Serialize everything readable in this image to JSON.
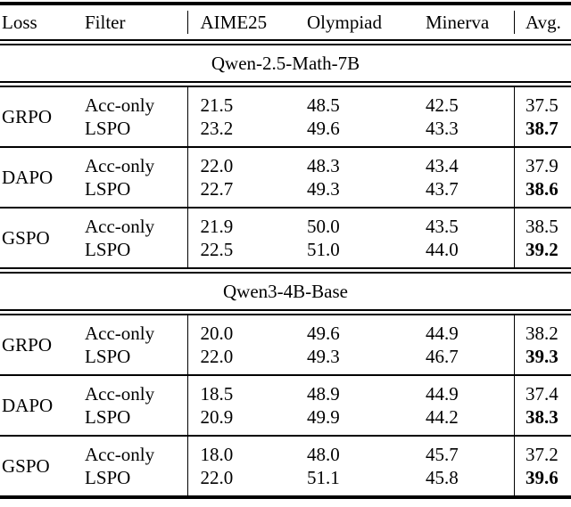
{
  "colors": {
    "background": "#ffffff",
    "text": "#000000",
    "rule": "#000000"
  },
  "table": {
    "header": {
      "loss": "Loss",
      "filter": "Filter",
      "aime25": "AIME25",
      "olympiad": "Olympiad",
      "minerva": "Minerva",
      "avg": "Avg."
    },
    "sections": [
      {
        "title": "Qwen-2.5-Math-7B",
        "blocks": [
          {
            "loss": "GRPO",
            "rows": [
              {
                "filter": "Acc-only",
                "aime25": "21.5",
                "olympiad": "48.5",
                "minerva": "42.5",
                "avg": "37.5",
                "avg_bold": false
              },
              {
                "filter": "LSPO",
                "aime25": "23.2",
                "olympiad": "49.6",
                "minerva": "43.3",
                "avg": "38.7",
                "avg_bold": true
              }
            ]
          },
          {
            "loss": "DAPO",
            "rows": [
              {
                "filter": "Acc-only",
                "aime25": "22.0",
                "olympiad": "48.3",
                "minerva": "43.4",
                "avg": "37.9",
                "avg_bold": false
              },
              {
                "filter": "LSPO",
                "aime25": "22.7",
                "olympiad": "49.3",
                "minerva": "43.7",
                "avg": "38.6",
                "avg_bold": true
              }
            ]
          },
          {
            "loss": "GSPO",
            "rows": [
              {
                "filter": "Acc-only",
                "aime25": "21.9",
                "olympiad": "50.0",
                "minerva": "43.5",
                "avg": "38.5",
                "avg_bold": false
              },
              {
                "filter": "LSPO",
                "aime25": "22.5",
                "olympiad": "51.0",
                "minerva": "44.0",
                "avg": "39.2",
                "avg_bold": true
              }
            ]
          }
        ]
      },
      {
        "title": "Qwen3-4B-Base",
        "blocks": [
          {
            "loss": "GRPO",
            "rows": [
              {
                "filter": "Acc-only",
                "aime25": "20.0",
                "olympiad": "49.6",
                "minerva": "44.9",
                "avg": "38.2",
                "avg_bold": false
              },
              {
                "filter": "LSPO",
                "aime25": "22.0",
                "olympiad": "49.3",
                "minerva": "46.7",
                "avg": "39.3",
                "avg_bold": true
              }
            ]
          },
          {
            "loss": "DAPO",
            "rows": [
              {
                "filter": "Acc-only",
                "aime25": "18.5",
                "olympiad": "48.9",
                "minerva": "44.9",
                "avg": "37.4",
                "avg_bold": false
              },
              {
                "filter": "LSPO",
                "aime25": "20.9",
                "olympiad": "49.9",
                "minerva": "44.2",
                "avg": "38.3",
                "avg_bold": true
              }
            ]
          },
          {
            "loss": "GSPO",
            "rows": [
              {
                "filter": "Acc-only",
                "aime25": "18.0",
                "olympiad": "48.0",
                "minerva": "45.7",
                "avg": "37.2",
                "avg_bold": false
              },
              {
                "filter": "LSPO",
                "aime25": "22.0",
                "olympiad": "51.1",
                "minerva": "45.8",
                "avg": "39.6",
                "avg_bold": true
              }
            ]
          }
        ]
      }
    ]
  }
}
